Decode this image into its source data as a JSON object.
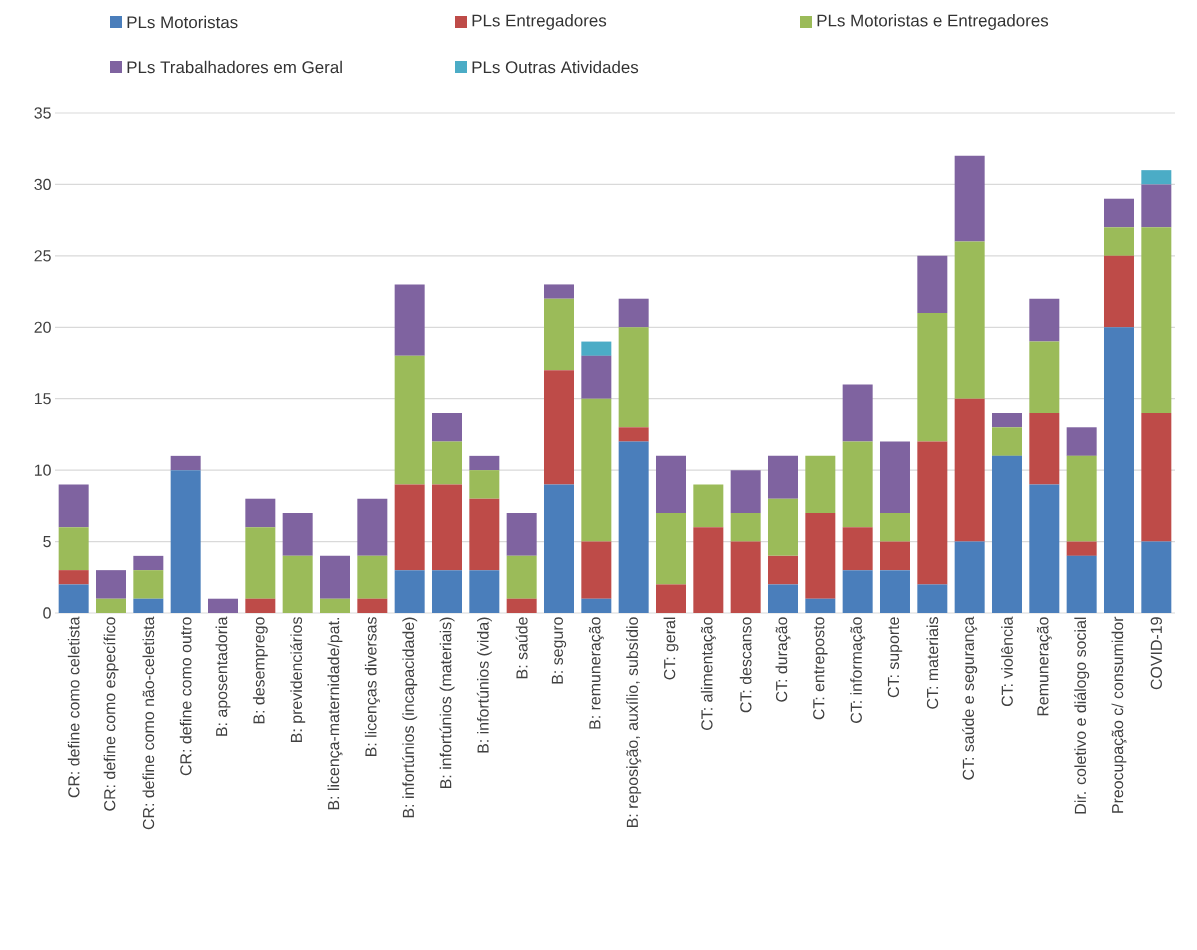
{
  "chart_data": {
    "type": "bar",
    "stacked": true,
    "categories": [
      "CR: define como celetista",
      "CR: define como específico",
      "CR: define como não-celetista",
      "CR: define como outro",
      "B: aposentadoria",
      "B: desemprego",
      "B: previdenciários",
      "B: licença-maternidade/pat.",
      "B: licenças diversas",
      "B: infortúnios (incapacidade)",
      "B: infortúnios (materiais)",
      "B: infortúnios (vida)",
      "B: saúde",
      "B: seguro",
      "B: remuneração",
      "B: reposição, auxílio, subsídio",
      "CT: geral",
      "CT: alimentação",
      "CT: descanso",
      "CT: duração",
      "CT: entreposto",
      "CT: informação",
      "CT: suporte",
      "CT: materiais",
      "CT: saúde e segurança",
      "CT: violência",
      "Remuneração",
      "Dir. coletivo e diálogo social",
      "Preocupação c/ consumidor",
      "COVID-19"
    ],
    "series": [
      {
        "name": "PLs Motoristas",
        "color": "#4a7ebb",
        "values": [
          2,
          0,
          1,
          10,
          0,
          0,
          0,
          0,
          0,
          3,
          3,
          3,
          0,
          9,
          1,
          12,
          0,
          0,
          0,
          2,
          1,
          3,
          3,
          2,
          5,
          11,
          9,
          4,
          20,
          5
        ]
      },
      {
        "name": "PLs Entregadores",
        "color": "#be4b48",
        "values": [
          1,
          0,
          0,
          0,
          0,
          1,
          0,
          0,
          1,
          6,
          6,
          5,
          1,
          8,
          4,
          1,
          2,
          6,
          5,
          2,
          6,
          3,
          2,
          10,
          10,
          0,
          5,
          1,
          5,
          9
        ]
      },
      {
        "name": "PLs Motoristas e Entregadores",
        "color": "#9bbb59",
        "values": [
          3,
          1,
          2,
          0,
          0,
          5,
          4,
          1,
          3,
          9,
          3,
          2,
          3,
          5,
          10,
          7,
          5,
          3,
          2,
          4,
          4,
          6,
          2,
          9,
          11,
          2,
          5,
          6,
          2,
          13
        ]
      },
      {
        "name": "PLs Trabalhadores em Geral",
        "color": "#7f63a0",
        "values": [
          3,
          2,
          1,
          1,
          1,
          2,
          3,
          3,
          4,
          5,
          2,
          1,
          3,
          1,
          3,
          2,
          4,
          0,
          3,
          3,
          0,
          4,
          5,
          4,
          6,
          1,
          3,
          2,
          2,
          3
        ]
      },
      {
        "name": "PLs Outras Atividades",
        "color": "#4bacc6",
        "values": [
          0,
          0,
          0,
          0,
          0,
          0,
          0,
          0,
          0,
          0,
          0,
          0,
          0,
          0,
          1,
          0,
          0,
          0,
          0,
          0,
          0,
          0,
          0,
          0,
          0,
          0,
          0,
          0,
          0,
          1
        ]
      }
    ],
    "ylim": [
      0,
      35
    ],
    "yticks": [
      0,
      5,
      10,
      15,
      20,
      25,
      30,
      35
    ],
    "grid": "y",
    "legend": "top"
  }
}
